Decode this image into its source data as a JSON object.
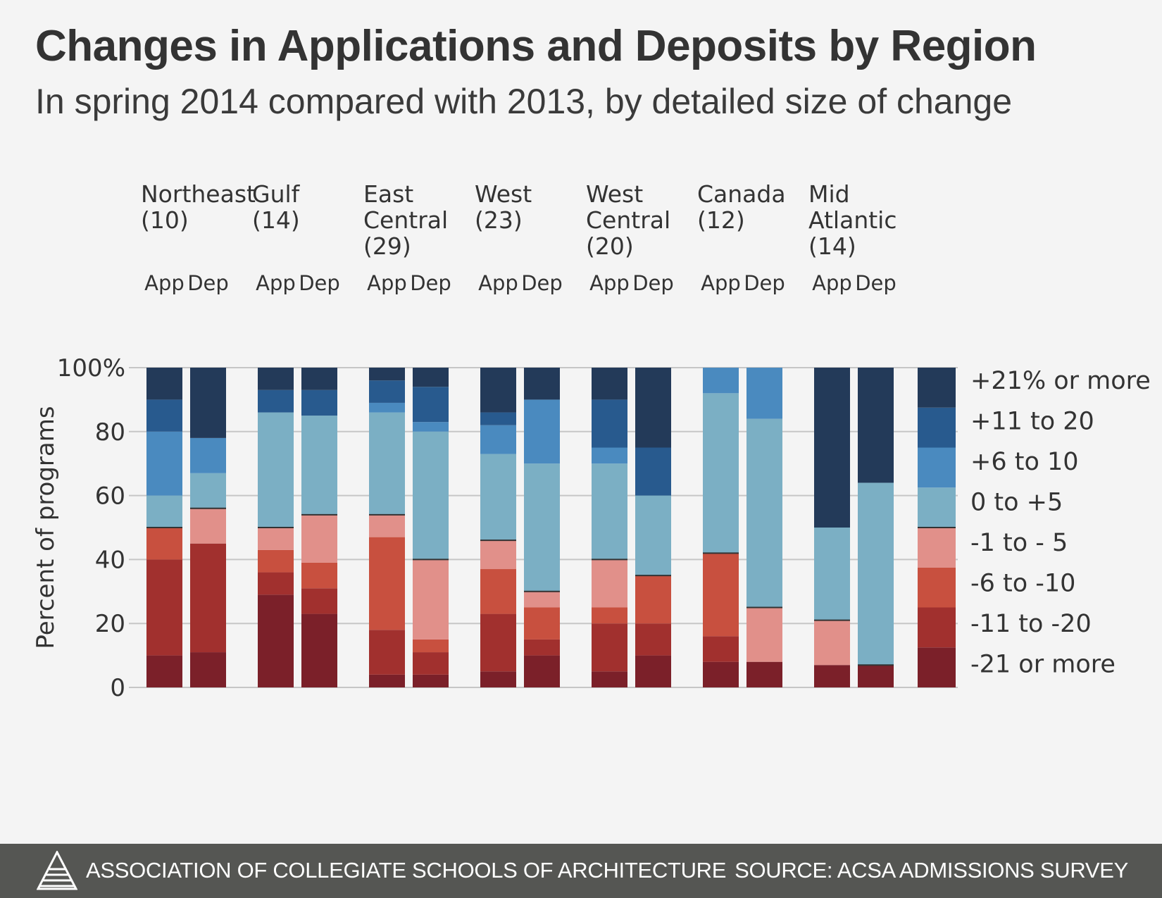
{
  "header": {
    "title": "Changes in Applications and Deposits by Region",
    "subtitle": "In spring 2014 compared with 2013, by detailed size of change"
  },
  "footer": {
    "organization": "ASSOCIATION OF COLLEGIATE SCHOOLS OF ARCHITECTURE",
    "source": "SOURCE: ACSA ADMISSIONS SURVEY",
    "logo_icon": "acsa-triangle-logo-icon"
  },
  "chart_data": {
    "type": "bar",
    "stacked": true,
    "ylabel": "Percent of programs",
    "ylim": [
      0,
      100
    ],
    "yticks": [
      {
        "value": 0,
        "label": "0"
      },
      {
        "value": 20,
        "label": "20"
      },
      {
        "value": 40,
        "label": "40"
      },
      {
        "value": 60,
        "label": "60"
      },
      {
        "value": 80,
        "label": "80"
      },
      {
        "value": 100,
        "label": "100%"
      }
    ],
    "grid": true,
    "column_labels": [
      "App",
      "Dep"
    ],
    "categories_order": [
      "-21 or more",
      "-11 to -20",
      "-6 to -10",
      "-1 to - 5",
      "0  to +5",
      "+6  to 10",
      "+11 to 20",
      "+21% or more"
    ],
    "colors": [
      "#7b2029",
      "#a1302e",
      "#c8503f",
      "#e1908a",
      "#7bafc4",
      "#4a8abf",
      "#285a8e",
      "#233a59"
    ],
    "legend": {
      "placement": "right",
      "labels": [
        "+21% or more",
        "+11 to 20",
        "+6  to 10",
        "0  to +5",
        "-1 to - 5",
        "-6 to -10",
        "-11 to -20",
        "-21 or more"
      ]
    },
    "regions": [
      {
        "name": [
          "Northeast",
          "(10)"
        ],
        "app": [
          10,
          30,
          10,
          0,
          10,
          20,
          10,
          10
        ],
        "dep": [
          11,
          34,
          0,
          11,
          11,
          11,
          0,
          22
        ]
      },
      {
        "name": [
          "Gulf",
          "(14)"
        ],
        "app": [
          29,
          7,
          7,
          7,
          36,
          0,
          7,
          7
        ],
        "dep": [
          23,
          8,
          8,
          15,
          31,
          0,
          8,
          7
        ]
      },
      {
        "name": [
          "East",
          "Central",
          "(29)"
        ],
        "app": [
          4,
          14,
          29,
          7,
          32,
          3,
          7,
          4
        ],
        "dep": [
          4,
          7,
          4,
          25,
          40,
          3,
          11,
          6
        ]
      },
      {
        "name": [
          "West",
          "(23)"
        ],
        "app": [
          5,
          18,
          14,
          9,
          27,
          9,
          4,
          14
        ],
        "dep": [
          10,
          5,
          10,
          5,
          40,
          20,
          0,
          10
        ]
      },
      {
        "name": [
          "West",
          "Central",
          "(20)"
        ],
        "app": [
          5,
          15,
          5,
          15,
          30,
          5,
          15,
          10
        ],
        "dep": [
          10,
          10,
          15,
          0,
          25,
          0,
          15,
          25
        ]
      },
      {
        "name": [
          "Canada",
          "(12)"
        ],
        "app": [
          8,
          8,
          26,
          0,
          50,
          8,
          0,
          0
        ],
        "dep": [
          8,
          0,
          0,
          17,
          59,
          16,
          0,
          0
        ]
      },
      {
        "name": [
          "Mid",
          "Atlantic",
          "(14)"
        ],
        "app": [
          7,
          0,
          0,
          14,
          29,
          0,
          0,
          50
        ],
        "dep": [
          7,
          0,
          0,
          0,
          57,
          0,
          0,
          36
        ]
      }
    ]
  }
}
